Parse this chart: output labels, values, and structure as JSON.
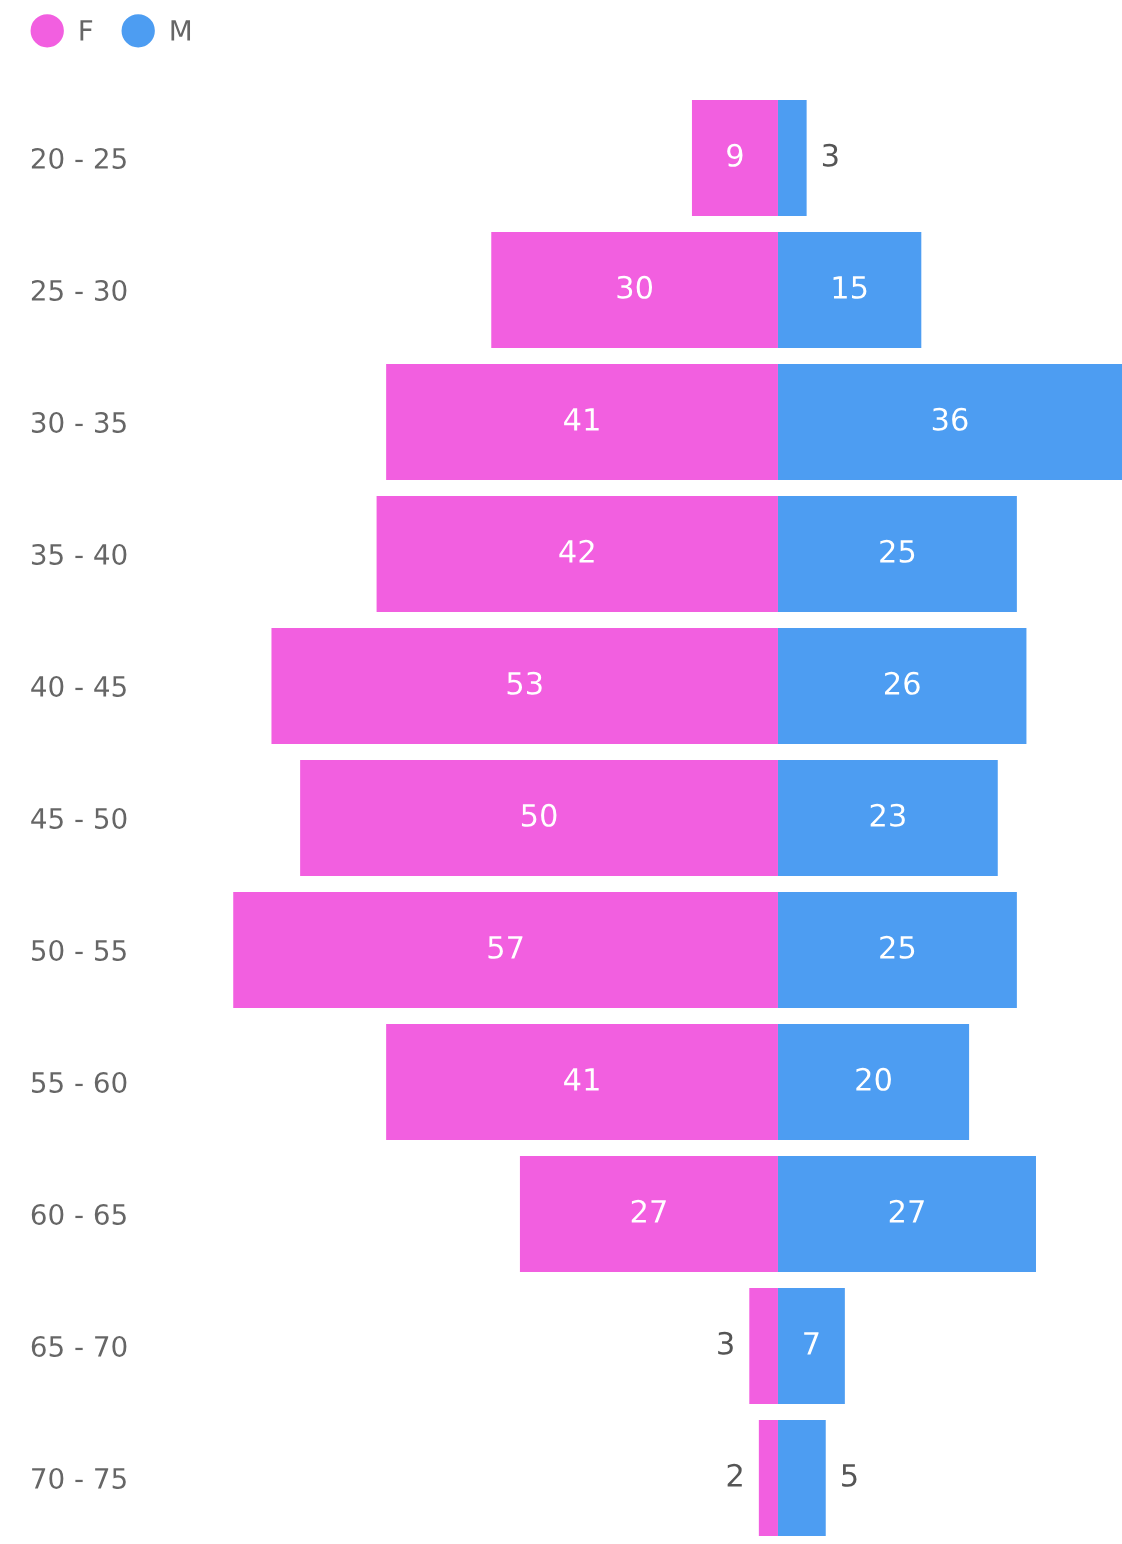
{
  "chart_data": [
    {
      "type": "bar",
      "orientation": "horizontal",
      "categories": [
        "20 - 25",
        "25 - 30",
        "30 - 35",
        "35 - 40",
        "40 - 45",
        "45 - 50",
        "50 - 55",
        "55 - 60",
        "60 - 65",
        "65 - 70",
        "70 - 75"
      ],
      "series": [
        {
          "name": "F",
          "color": "#f25fe0",
          "values": [
            9,
            30,
            41,
            42,
            53,
            50,
            57,
            41,
            27,
            3,
            2
          ]
        }
      ],
      "data_labels": true,
      "tick_labels": "y",
      "legend": "top left",
      "marker": "circle"
    },
    {
      "type": "bar",
      "orientation": "horizontal",
      "categories": [
        null,
        null,
        null,
        null,
        null,
        null,
        null,
        null,
        null,
        null,
        null
      ],
      "series": [
        {
          "name": "M",
          "color": "#4d9df2",
          "values": [
            3,
            15,
            36,
            25,
            26,
            23,
            25,
            20,
            27,
            7,
            5
          ]
        }
      ],
      "data_labels": true,
      "tick_labels": false,
      "legend": "top left",
      "marker": "circle"
    }
  ]
}
